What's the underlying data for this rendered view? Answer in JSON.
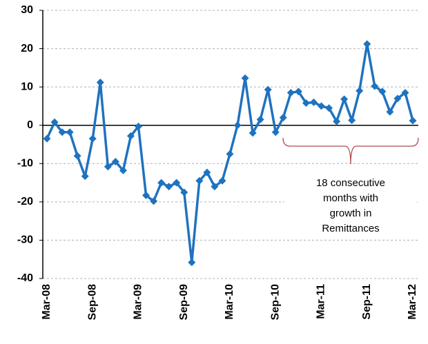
{
  "chart_data": {
    "type": "line",
    "categories": [
      "Mar-08",
      null,
      null,
      null,
      null,
      null,
      "Sep-08",
      null,
      null,
      null,
      null,
      null,
      "Mar-09",
      null,
      null,
      null,
      null,
      null,
      "Sep-09",
      null,
      null,
      null,
      null,
      null,
      "Mar-10",
      null,
      null,
      null,
      null,
      null,
      "Sep-10",
      null,
      null,
      null,
      null,
      null,
      "Mar-11",
      null,
      null,
      null,
      null,
      null,
      "Sep-11",
      null,
      null,
      null,
      null,
      null,
      "Mar-12"
    ],
    "series": [
      {
        "color": "#1f72c0",
        "values": [
          -3.5,
          0.8,
          -1.8,
          -1.8,
          -8,
          -13.3,
          -3.5,
          11.2,
          -10.8,
          -9.5,
          -11.8,
          -2.8,
          -0.3,
          -18.3,
          -19.8,
          -15,
          -16,
          -15,
          -17.5,
          -35.8,
          -14.5,
          -12.3,
          -16,
          -14.5,
          -7.5,
          0,
          12.3,
          -2,
          1.5,
          9.3,
          -1.8,
          2,
          8.5,
          8.8,
          5.8,
          6,
          5,
          4.5,
          1,
          6.8,
          1.3,
          9,
          21.2,
          10.2,
          8.8,
          3.5,
          7,
          8.5,
          1.2
        ]
      }
    ],
    "ylim": [
      -40,
      30
    ],
    "yticks": [
      -40,
      -30,
      -20,
      -10,
      0,
      10,
      20,
      30
    ],
    "grid": true,
    "annotation": [
      "18 consecutive",
      "months with",
      "growth in",
      "Remittances"
    ]
  }
}
